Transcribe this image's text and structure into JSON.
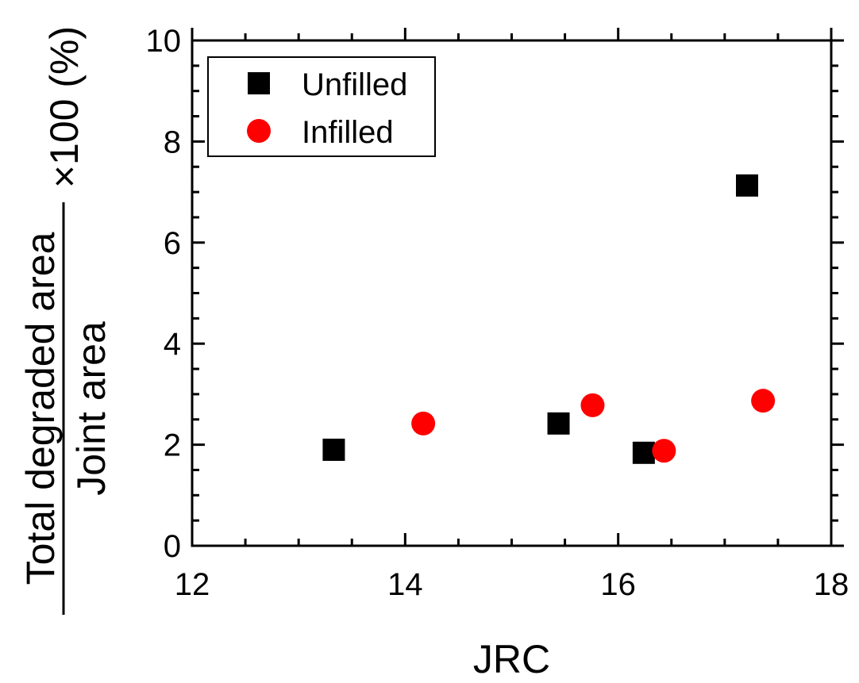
{
  "chart_data": {
    "type": "scatter",
    "xlabel": "JRC",
    "ylabel": {
      "numerator": "Total degraded area",
      "denominator": "Joint area",
      "suffix": "×100 (%)"
    },
    "xlim": [
      12,
      18
    ],
    "ylim": [
      0,
      10
    ],
    "x_ticks": [
      "12",
      "14",
      "16",
      "18"
    ],
    "y_ticks": [
      "0",
      "2",
      "4",
      "6",
      "8",
      "10"
    ],
    "grid": false,
    "legend_position": "top-left",
    "series": [
      {
        "name": "Unfilled",
        "marker": "square",
        "color": "#000000",
        "points": [
          [
            13.33,
            1.9
          ],
          [
            15.44,
            2.42
          ],
          [
            16.24,
            1.84
          ],
          [
            17.21,
            7.13
          ]
        ]
      },
      {
        "name": "Infilled",
        "marker": "circle",
        "color": "#ff0000",
        "points": [
          [
            14.17,
            2.42
          ],
          [
            15.76,
            2.78
          ],
          [
            16.43,
            1.88
          ],
          [
            17.36,
            2.87
          ]
        ]
      }
    ]
  }
}
